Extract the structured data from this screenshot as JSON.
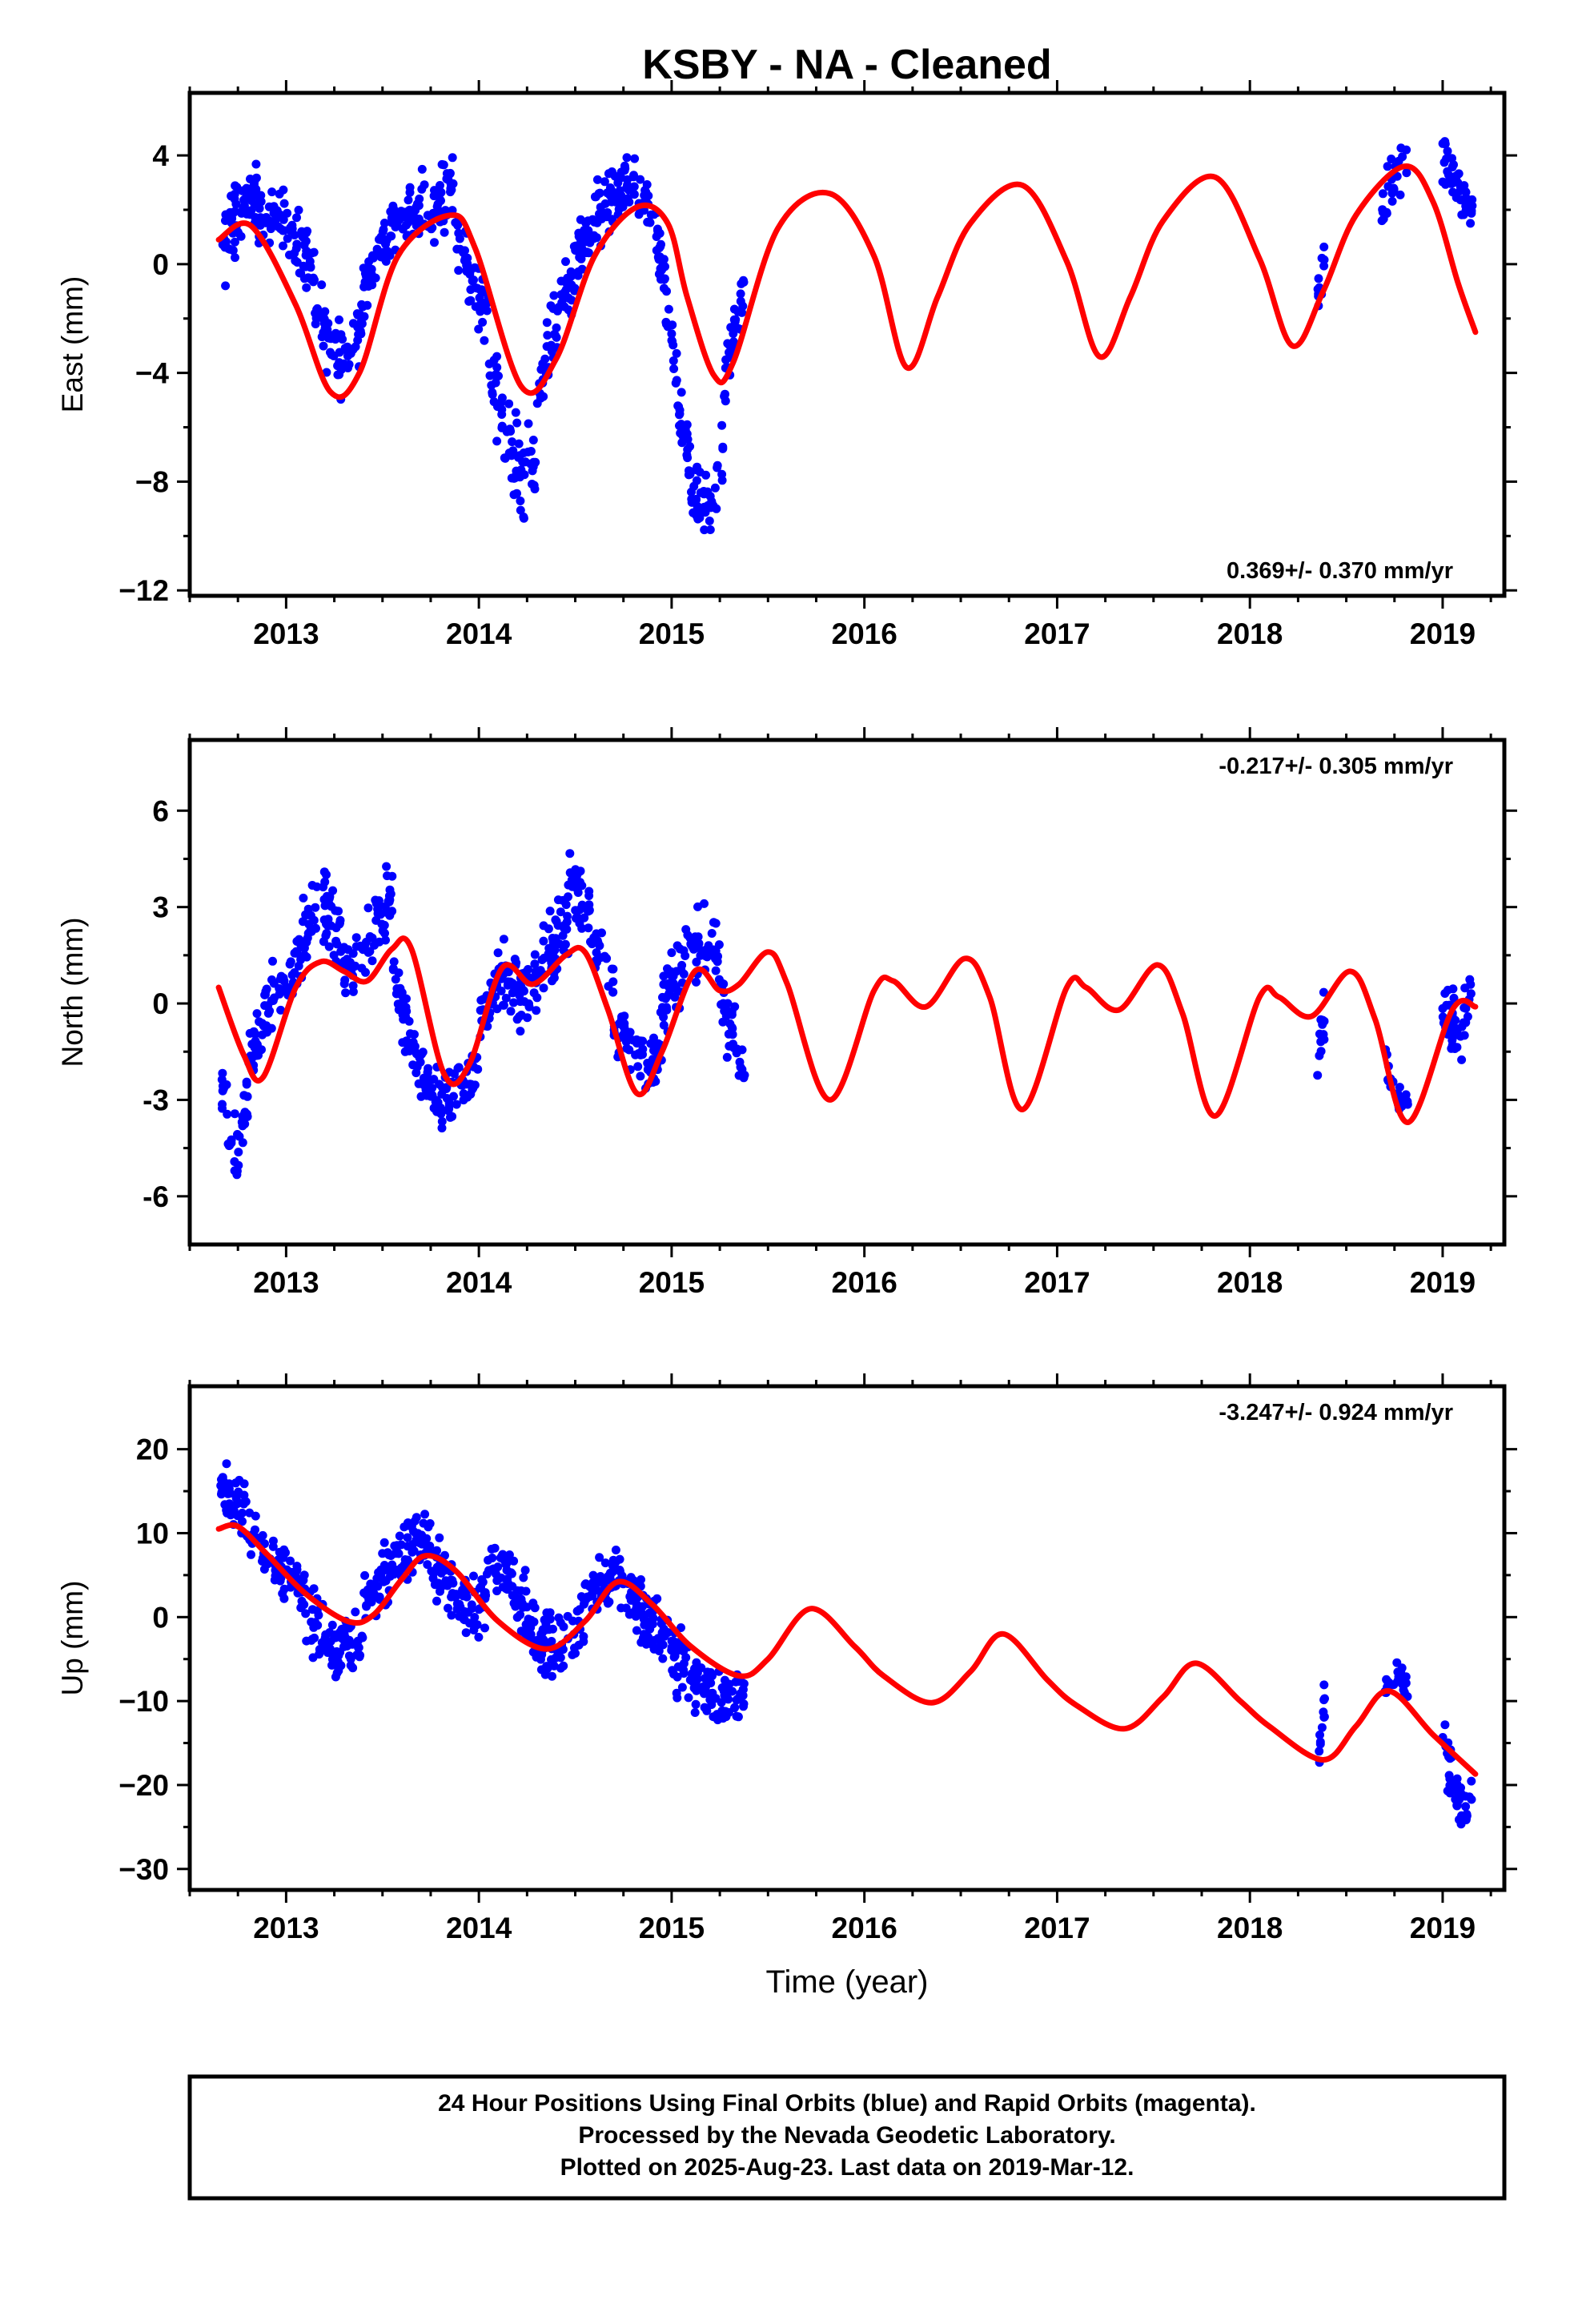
{
  "title": "KSBY  - NA - Cleaned",
  "xlabel": "Time (year)",
  "colors": {
    "final_orbits": "#0000ff",
    "model": "#ff0000",
    "frame": "#000000"
  },
  "footer": {
    "line1": "24 Hour Positions Using Final Orbits (blue) and Rapid Orbits (magenta).",
    "line2": "Processed by the Nevada Geodetic Laboratory.",
    "line3": "Plotted on 2025-Aug-23. Last data on 2019-Mar-12."
  },
  "chart_data": [
    {
      "type": "scatter",
      "name": "east",
      "ylabel": "East (mm)",
      "rate_label": "0.369+/- 0.370 mm/yr",
      "rate_position": "bottom-right",
      "xlim": [
        2012.5,
        2019.32
      ],
      "ylim": [
        -12.2,
        6.3
      ],
      "xticks": [
        2013,
        2014,
        2015,
        2016,
        2017,
        2018,
        2019
      ],
      "xtick_labels": [
        "2013",
        "2014",
        "2015",
        "2016",
        "2017",
        "2018",
        "2019"
      ],
      "yticks": [
        4,
        0,
        -4,
        -8,
        -12
      ],
      "ytick_labels": [
        "4",
        "0",
        "−4",
        "−8",
        "−12"
      ],
      "model_curve": {
        "x": [
          2012.65,
          2012.82,
          2013.05,
          2013.23,
          2013.38,
          2013.58,
          2013.85,
          2013.98,
          2014.22,
          2014.4,
          2014.6,
          2014.82,
          2014.98,
          2015.08,
          2015.22,
          2015.32,
          2015.55,
          2015.82,
          2016.05,
          2016.22,
          2016.38,
          2016.55,
          2016.82,
          2017.05,
          2017.22,
          2017.38,
          2017.55,
          2017.82,
          2018.05,
          2018.22,
          2018.38,
          2018.55,
          2018.8,
          2018.95,
          2019.08,
          2019.17
        ],
        "y": [
          0.9,
          1.4,
          -1.5,
          -4.7,
          -4.0,
          0.3,
          1.8,
          0.6,
          -4.5,
          -3.5,
          0.3,
          2.1,
          1.5,
          -1.2,
          -4.1,
          -3.6,
          1.3,
          2.6,
          0.3,
          -3.8,
          -1.2,
          1.5,
          2.9,
          0.1,
          -3.4,
          -1.2,
          1.6,
          3.2,
          0.2,
          -3.0,
          -1.0,
          1.8,
          3.6,
          2.3,
          -0.7,
          -2.5
        ]
      },
      "scatter_segments": [
        {
          "x0": 2012.66,
          "x1": 2012.92,
          "y": [
            0.2,
            1.0,
            1.8,
            2.2,
            2.3,
            2.0,
            1.6
          ],
          "spread": 1.3,
          "n": 80
        },
        {
          "x0": 2012.92,
          "x1": 2013.15,
          "y": [
            2.0,
            1.8,
            1.2,
            0.5,
            -0.6
          ],
          "spread": 1.1,
          "n": 60
        },
        {
          "x0": 2013.15,
          "x1": 2013.4,
          "y": [
            -1.2,
            -2.6,
            -3.5,
            -3.2,
            -2.0
          ],
          "spread": 1.2,
          "n": 70
        },
        {
          "x0": 2013.4,
          "x1": 2013.65,
          "y": [
            -1.0,
            0.2,
            1.0,
            1.6,
            1.9
          ],
          "spread": 1.0,
          "n": 70
        },
        {
          "x0": 2013.65,
          "x1": 2013.87,
          "y": [
            1.7,
            2.1,
            2.3,
            2.6,
            2.8
          ],
          "spread": 1.2,
          "n": 60
        },
        {
          "x0": 2013.87,
          "x1": 2014.05,
          "y": [
            1.5,
            0.2,
            -1.0,
            -2.0
          ],
          "spread": 1.1,
          "n": 50
        },
        {
          "x0": 2014.05,
          "x1": 2014.3,
          "y": [
            -3.5,
            -5.5,
            -7.0,
            -7.8,
            -7.2
          ],
          "spread": 1.5,
          "n": 70
        },
        {
          "x0": 2014.3,
          "x1": 2014.5,
          "y": [
            -5.5,
            -3.0,
            -1.2,
            -0.3
          ],
          "spread": 1.2,
          "n": 60
        },
        {
          "x0": 2014.5,
          "x1": 2014.75,
          "y": [
            0.2,
            1.0,
            1.8,
            2.3,
            2.6
          ],
          "spread": 1.1,
          "n": 80
        },
        {
          "x0": 2014.75,
          "x1": 2014.97,
          "y": [
            2.8,
            2.8,
            2.2,
            1.0,
            -0.5
          ],
          "spread": 1.0,
          "n": 60
        },
        {
          "x0": 2014.97,
          "x1": 2015.1,
          "y": [
            -2.0,
            -4.0,
            -6.0,
            -7.5
          ],
          "spread": 1.3,
          "n": 40
        },
        {
          "x0": 2015.1,
          "x1": 2015.27,
          "y": [
            -8.0,
            -8.8,
            -9.0,
            -7.0
          ],
          "spread": 1.4,
          "n": 45
        },
        {
          "x0": 2015.27,
          "x1": 2015.38,
          "y": [
            -4.5,
            -3.0,
            -2.0,
            -1.0
          ],
          "spread": 1.0,
          "n": 35
        },
        {
          "x0": 2018.35,
          "x1": 2018.39,
          "y": [
            -1.5,
            -0.5,
            0.3
          ],
          "spread": 0.9,
          "n": 12
        },
        {
          "x0": 2018.68,
          "x1": 2018.82,
          "y": [
            1.8,
            2.8,
            3.5,
            4.0
          ],
          "spread": 1.0,
          "n": 25
        },
        {
          "x0": 2019.0,
          "x1": 2019.16,
          "y": [
            3.8,
            3.4,
            2.8,
            2.3,
            2.0
          ],
          "spread": 0.9,
          "n": 45
        }
      ]
    },
    {
      "type": "scatter",
      "name": "north",
      "ylabel": "North (mm)",
      "rate_label": "-0.217+/- 0.305 mm/yr",
      "rate_position": "top-right",
      "xlim": [
        2012.5,
        2019.32
      ],
      "ylim": [
        -7.5,
        8.2
      ],
      "xticks": [
        2013,
        2014,
        2015,
        2016,
        2017,
        2018,
        2019
      ],
      "xtick_labels": [
        "2013",
        "2014",
        "2015",
        "2016",
        "2017",
        "2018",
        "2019"
      ],
      "yticks": [
        6,
        3,
        0,
        -3,
        -6
      ],
      "ytick_labels": [
        "6",
        "3",
        "0",
        "-3",
        "-6"
      ],
      "model_curve": {
        "x": [
          2012.65,
          2012.78,
          2012.88,
          2013.05,
          2013.18,
          2013.3,
          2013.42,
          2013.55,
          2013.65,
          2013.82,
          2013.95,
          2014.12,
          2014.28,
          2014.45,
          2014.55,
          2014.67,
          2014.82,
          2014.95,
          2015.12,
          2015.25,
          2015.35,
          2015.5,
          2015.6,
          2015.82,
          2016.05,
          2016.15,
          2016.32,
          2016.52,
          2016.65,
          2016.82,
          2017.05,
          2017.15,
          2017.32,
          2017.52,
          2017.65,
          2017.82,
          2018.05,
          2018.15,
          2018.32,
          2018.52,
          2018.65,
          2018.82,
          2019.05,
          2019.17
        ],
        "y": [
          0.5,
          -1.6,
          -2.3,
          0.5,
          1.3,
          1.0,
          0.7,
          1.7,
          1.7,
          -2.2,
          -1.9,
          1.1,
          0.6,
          1.5,
          1.6,
          -0.2,
          -2.8,
          -1.5,
          1.0,
          0.4,
          0.6,
          1.6,
          0.6,
          -3.0,
          0.4,
          0.7,
          -0.1,
          1.4,
          0.2,
          -3.3,
          0.5,
          0.5,
          -0.2,
          1.2,
          -0.3,
          -3.5,
          0.2,
          0.2,
          -0.4,
          1.0,
          -0.5,
          -3.7,
          -0.2,
          -0.1
        ]
      },
      "scatter_segments": [
        {
          "x0": 2012.66,
          "x1": 2012.8,
          "y": [
            -2.3,
            -3.8,
            -4.8,
            -4.2,
            -3.0
          ],
          "spread": 1.0,
          "n": 40
        },
        {
          "x0": 2012.8,
          "x1": 2013.05,
          "y": [
            -1.8,
            -0.8,
            0.0,
            0.6,
            1.2
          ],
          "spread": 1.0,
          "n": 60
        },
        {
          "x0": 2013.05,
          "x1": 2013.3,
          "y": [
            1.6,
            2.4,
            3.0,
            2.6,
            1.8
          ],
          "spread": 1.1,
          "n": 70
        },
        {
          "x0": 2013.3,
          "x1": 2013.55,
          "y": [
            1.0,
            1.5,
            2.0,
            2.8,
            3.5
          ],
          "spread": 1.2,
          "n": 60
        },
        {
          "x0": 2013.55,
          "x1": 2013.72,
          "y": [
            1.5,
            -0.5,
            -1.5,
            -2.0
          ],
          "spread": 1.0,
          "n": 45
        },
        {
          "x0": 2013.72,
          "x1": 2014.0,
          "y": [
            -2.5,
            -3.0,
            -3.0,
            -2.5,
            -1.8
          ],
          "spread": 0.9,
          "n": 70
        },
        {
          "x0": 2014.0,
          "x1": 2014.25,
          "y": [
            -0.8,
            0.3,
            0.8,
            0.6,
            0.2
          ],
          "spread": 1.1,
          "n": 70
        },
        {
          "x0": 2014.25,
          "x1": 2014.5,
          "y": [
            0.3,
            0.8,
            1.5,
            2.5,
            4.0
          ],
          "spread": 1.2,
          "n": 70
        },
        {
          "x0": 2014.5,
          "x1": 2014.7,
          "y": [
            3.5,
            2.8,
            1.8,
            0.6
          ],
          "spread": 1.2,
          "n": 50
        },
        {
          "x0": 2014.7,
          "x1": 2014.95,
          "y": [
            -0.4,
            -1.2,
            -1.8,
            -2.0,
            -1.3
          ],
          "spread": 0.9,
          "n": 70
        },
        {
          "x0": 2014.95,
          "x1": 2015.25,
          "y": [
            -0.2,
            0.6,
            1.2,
            1.8,
            2.0,
            1.6
          ],
          "spread": 1.0,
          "n": 80
        },
        {
          "x0": 2015.25,
          "x1": 2015.38,
          "y": [
            0.3,
            -0.6,
            -1.2,
            -1.5
          ],
          "spread": 1.1,
          "n": 35
        },
        {
          "x0": 2018.35,
          "x1": 2018.39,
          "y": [
            -2.5,
            -1.0,
            0.0
          ],
          "spread": 1.0,
          "n": 12
        },
        {
          "x0": 2018.7,
          "x1": 2018.82,
          "y": [
            -1.5,
            -2.5,
            -3.2,
            -3.4
          ],
          "spread": 0.7,
          "n": 25
        },
        {
          "x0": 2019.0,
          "x1": 2019.16,
          "y": [
            0.2,
            -0.4,
            -0.8,
            -0.3,
            0.3
          ],
          "spread": 0.9,
          "n": 45
        }
      ]
    },
    {
      "type": "scatter",
      "name": "up",
      "ylabel": "Up (mm)",
      "rate_label": "-3.247+/- 0.924 mm/yr",
      "rate_position": "top-right",
      "xlim": [
        2012.5,
        2019.32
      ],
      "ylim": [
        -32.5,
        27.5
      ],
      "xticks": [
        2013,
        2014,
        2015,
        2016,
        2017,
        2018,
        2019
      ],
      "xtick_labels": [
        "2013",
        "2014",
        "2015",
        "2016",
        "2017",
        "2018",
        "2019"
      ],
      "yticks": [
        20,
        10,
        0,
        -10,
        -20,
        -30
      ],
      "ytick_labels": [
        "20",
        "10",
        "0",
        "−10",
        "−20",
        "−30"
      ],
      "model_curve": {
        "x": [
          2012.65,
          2012.75,
          2012.9,
          2013.1,
          2013.32,
          2013.45,
          2013.6,
          2013.72,
          2013.88,
          2014.1,
          2014.35,
          2014.55,
          2014.72,
          2014.9,
          2015.1,
          2015.35,
          2015.5,
          2015.72,
          2015.95,
          2016.1,
          2016.35,
          2016.55,
          2016.72,
          2016.95,
          2017.1,
          2017.35,
          2017.55,
          2017.72,
          2017.95,
          2018.1,
          2018.38,
          2018.55,
          2018.72,
          2018.95,
          2019.17
        ],
        "y": [
          10.5,
          10.8,
          7.5,
          2.8,
          -0.5,
          0.2,
          4.5,
          7.3,
          5.5,
          -0.5,
          -3.8,
          -0.5,
          4.2,
          1.5,
          -3.5,
          -7.0,
          -5.0,
          1.0,
          -3.5,
          -7.0,
          -10.2,
          -6.5,
          -2.0,
          -7.5,
          -10.5,
          -13.3,
          -9.5,
          -5.5,
          -10.0,
          -13.0,
          -17.0,
          -13.0,
          -8.8,
          -14.0,
          -18.7
        ]
      },
      "scatter_segments": [
        {
          "x0": 2012.66,
          "x1": 2012.85,
          "y": [
            16.0,
            14.0,
            12.0,
            10.5
          ],
          "spread": 3.5,
          "n": 50
        },
        {
          "x0": 2012.85,
          "x1": 2013.1,
          "y": [
            9.0,
            7.0,
            5.0,
            3.0
          ],
          "spread": 3.0,
          "n": 60
        },
        {
          "x0": 2013.1,
          "x1": 2013.4,
          "y": [
            1.0,
            -2.0,
            -4.0,
            -3.5,
            -1.5
          ],
          "spread": 4.0,
          "n": 80
        },
        {
          "x0": 2013.4,
          "x1": 2013.72,
          "y": [
            0.5,
            3.0,
            6.5,
            8.5,
            9.0
          ],
          "spread": 3.5,
          "n": 80
        },
        {
          "x0": 2013.72,
          "x1": 2014.0,
          "y": [
            8.0,
            5.0,
            2.0,
            0.0
          ],
          "spread": 3.5,
          "n": 70
        },
        {
          "x0": 2014.0,
          "x1": 2014.25,
          "y": [
            2.0,
            5.0,
            6.0,
            3.0,
            0.5
          ],
          "spread": 4.0,
          "n": 70
        },
        {
          "x0": 2014.25,
          "x1": 2014.55,
          "y": [
            -1.0,
            -3.0,
            -3.5,
            -2.0,
            0.5
          ],
          "spread": 3.5,
          "n": 80
        },
        {
          "x0": 2014.55,
          "x1": 2014.85,
          "y": [
            2.0,
            4.0,
            4.5,
            3.0,
            1.0
          ],
          "spread": 4.0,
          "n": 80
        },
        {
          "x0": 2014.85,
          "x1": 2015.12,
          "y": [
            0.0,
            -2.0,
            -4.5,
            -6.5
          ],
          "spread": 4.0,
          "n": 70
        },
        {
          "x0": 2015.12,
          "x1": 2015.38,
          "y": [
            -8.0,
            -9.0,
            -10.0,
            -9.5
          ],
          "spread": 3.5,
          "n": 70
        },
        {
          "x0": 2018.35,
          "x1": 2018.39,
          "y": [
            -18.0,
            -14.0,
            -10.0
          ],
          "spread": 2.5,
          "n": 12
        },
        {
          "x0": 2018.7,
          "x1": 2018.82,
          "y": [
            -9.0,
            -7.5,
            -6.0,
            -8.0
          ],
          "spread": 2.0,
          "n": 25
        },
        {
          "x0": 2019.0,
          "x1": 2019.16,
          "y": [
            -15.0,
            -19.0,
            -22.0,
            -24.0,
            -20.0
          ],
          "spread": 3.5,
          "n": 45
        }
      ]
    }
  ]
}
